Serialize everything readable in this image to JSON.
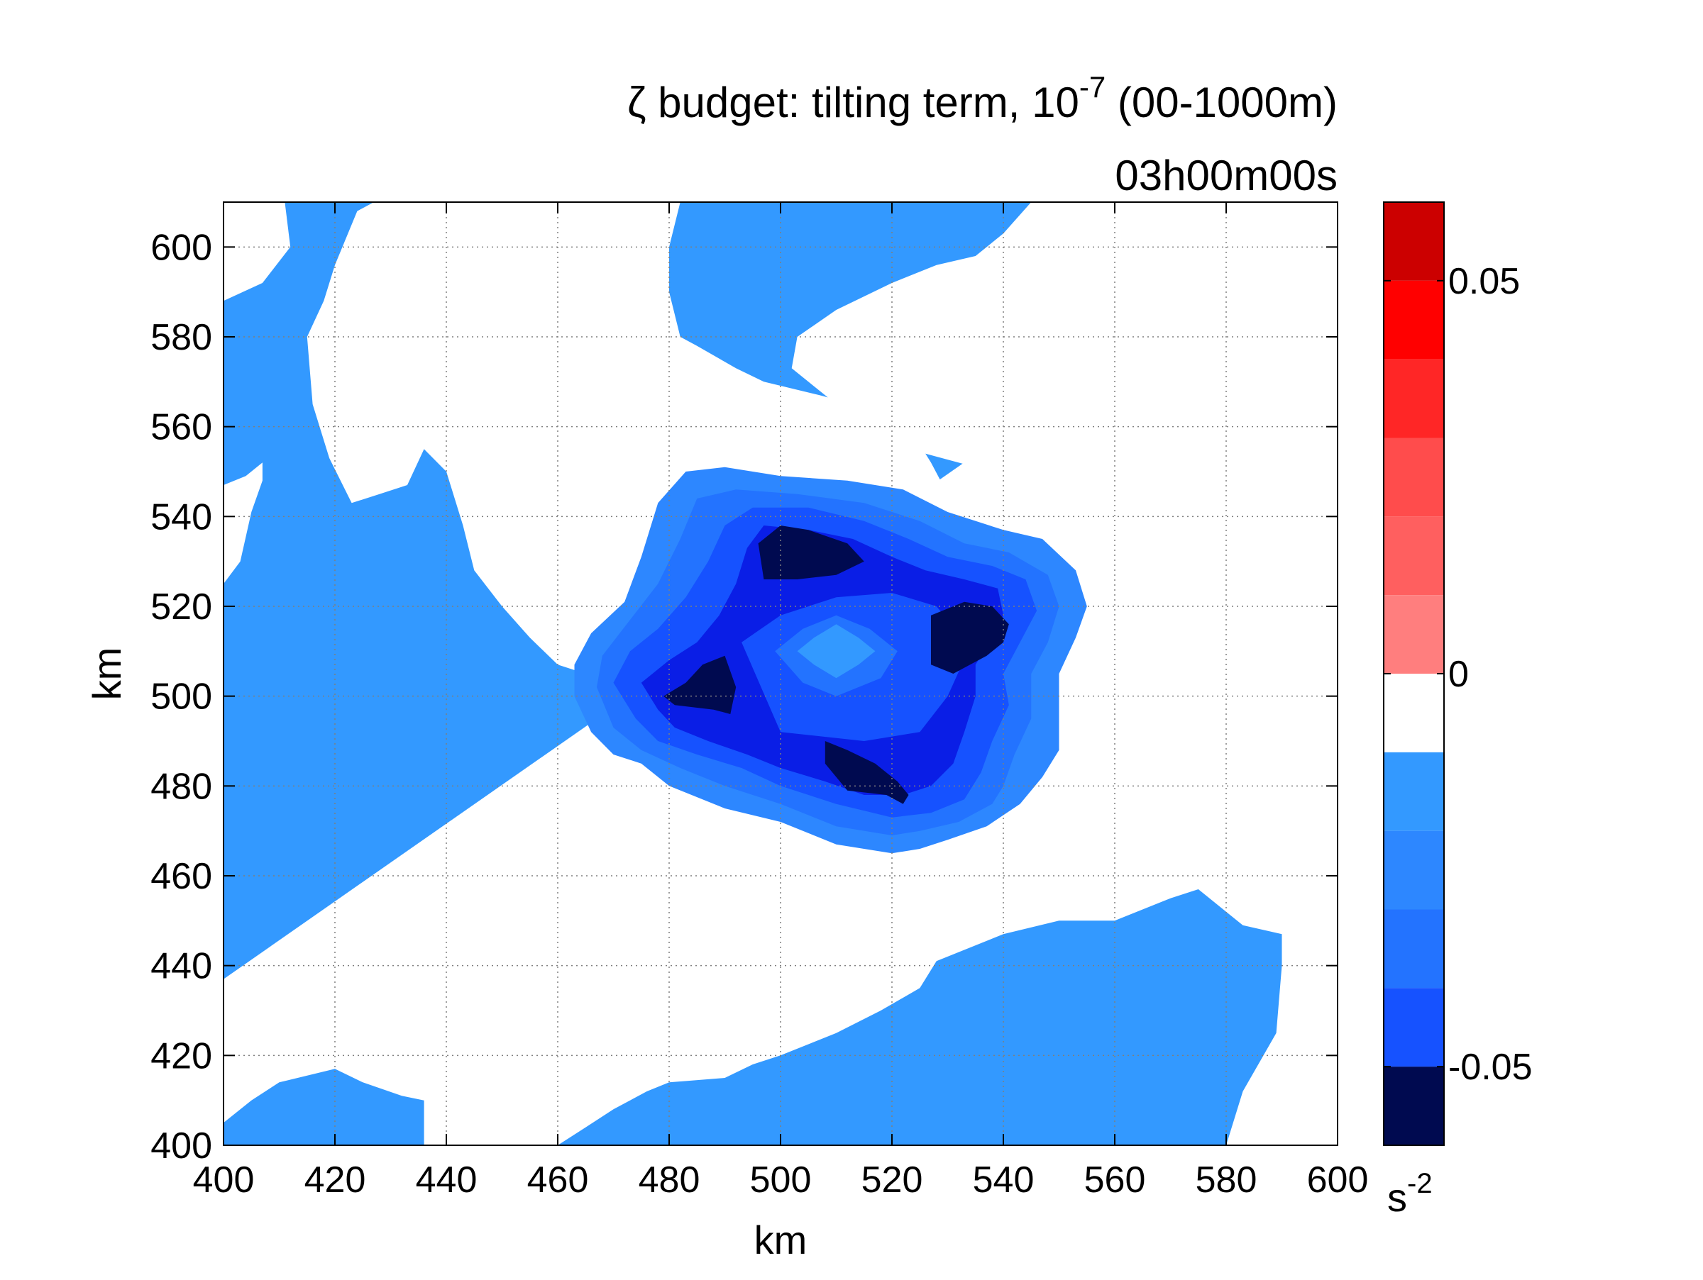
{
  "chart_data": {
    "type": "contourf",
    "title": {
      "symbol": "ζ",
      "prefix": " budget: tilting term, 10",
      "exponent": "-7",
      "suffix": " (00-1000m)"
    },
    "subtitle": "03h00m00s",
    "xlabel": "km",
    "ylabel": "km",
    "xlim": [
      400,
      600
    ],
    "ylim": [
      400,
      610
    ],
    "x_ticks": [
      400,
      420,
      440,
      460,
      480,
      500,
      520,
      540,
      560,
      580,
      600
    ],
    "y_ticks": [
      400,
      420,
      440,
      460,
      480,
      500,
      520,
      540,
      560,
      580,
      600
    ],
    "grid": true,
    "colorbar": {
      "range": [
        -0.06,
        0.06
      ],
      "tick_values": [
        0.05,
        0,
        -0.05
      ],
      "tick_labels": [
        "0.05",
        "0",
        "-0.05"
      ],
      "unit_base": "s",
      "unit_exponent": "-2",
      "levels": [
        {
          "from": 0.05,
          "to": 0.06,
          "color": "#cc0000"
        },
        {
          "from": 0.04,
          "to": 0.05,
          "color": "#ff0000"
        },
        {
          "from": 0.03,
          "to": 0.04,
          "color": "#ff2626"
        },
        {
          "from": 0.02,
          "to": 0.03,
          "color": "#ff4c4c"
        },
        {
          "from": 0.01,
          "to": 0.02,
          "color": "#ff5f5f"
        },
        {
          "from": 0.0,
          "to": 0.01,
          "color": "#ff7e7e"
        },
        {
          "from": -0.01,
          "to": 0.0,
          "color": "#ffffff"
        },
        {
          "from": -0.02,
          "to": -0.01,
          "color": "#3399ff"
        },
        {
          "from": -0.03,
          "to": -0.02,
          "color": "#2d87ff"
        },
        {
          "from": -0.04,
          "to": -0.03,
          "color": "#2373ff"
        },
        {
          "from": -0.05,
          "to": -0.04,
          "color": "#1652ff"
        },
        {
          "from": -0.06,
          "to": -0.05,
          "color": "#000a50"
        }
      ]
    },
    "fields": [
      {
        "name": "background",
        "color": "#3399ff"
      },
      {
        "name": "positive-region",
        "color": "#ffffff"
      },
      {
        "name": "level-1",
        "color": "#2d87ff"
      },
      {
        "name": "level-2",
        "color": "#2373ff"
      },
      {
        "name": "level-3",
        "color": "#1652ff"
      },
      {
        "name": "level-4",
        "color": "#0a1ee6"
      },
      {
        "name": "minimum",
        "color": "#000a50"
      }
    ],
    "centres": [
      {
        "x": 510,
        "y": 510,
        "value": -0.015
      },
      {
        "x": 522,
        "y": 531,
        "value": -0.06
      },
      {
        "x": 531,
        "y": 518,
        "value": -0.06
      },
      {
        "x": 488,
        "y": 504,
        "value": -0.06
      },
      {
        "x": 515,
        "y": 489,
        "value": -0.06
      }
    ]
  }
}
